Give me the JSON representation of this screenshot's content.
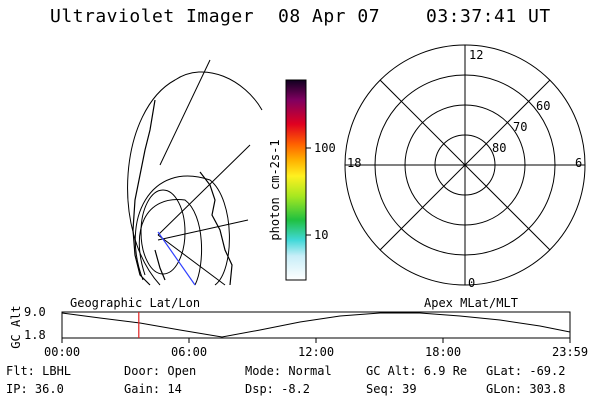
{
  "header": {
    "instrument": "Ultraviolet Imager",
    "date": "08 Apr 07",
    "time": "03:37:41 UT"
  },
  "colorbar": {
    "label": "photon cm-2s-1",
    "ticks": [
      "100",
      "10"
    ]
  },
  "polar_plot": {
    "mlt_labels": [
      "12",
      "18",
      "6",
      "0"
    ],
    "lat_labels": [
      "60",
      "70",
      "80"
    ]
  },
  "timeline": {
    "ylabel": "GC Alt",
    "y_ticks": [
      "9.0",
      "1.8"
    ],
    "left_title": "Geographic Lat/Lon",
    "right_title": "Apex MLat/MLT",
    "time_ticks": [
      "00:00",
      "06:00",
      "12:00",
      "18:00",
      "23:59"
    ],
    "current_time_fraction": 0.1512
  },
  "status": {
    "flt_label": "Flt: LBHL",
    "ip_label": "IP: 36.0",
    "door_label": "Door: Open",
    "gain_label": "Gain: 14",
    "mode_label": "Mode: Normal",
    "dsp_label": "Dsp:   -8.2",
    "gcalt_label": "GC Alt: 6.9 Re",
    "seq_label": "Seq: 39",
    "glat_label": "GLat: -69.2",
    "glon_label": "GLon: 303.8"
  }
}
